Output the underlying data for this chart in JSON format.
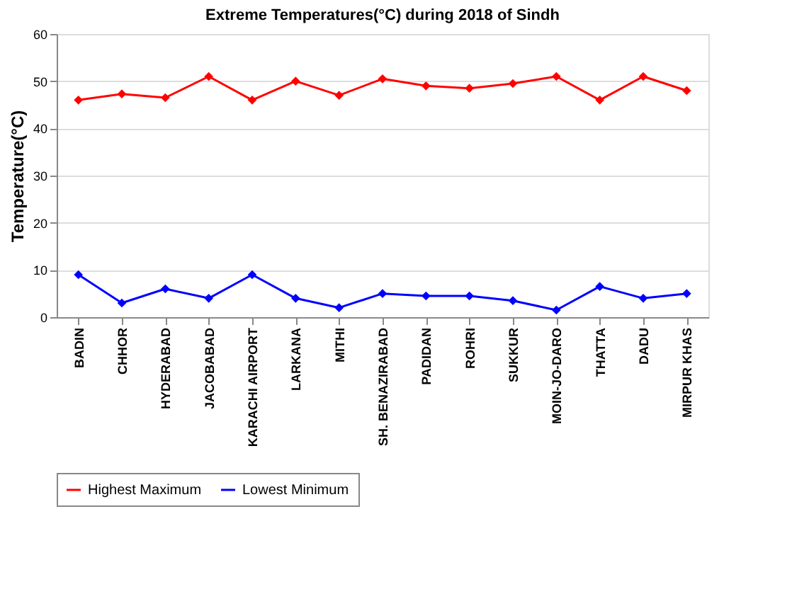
{
  "chart_data": {
    "type": "line",
    "title": "Extreme Temperatures(°C) during 2018 of Sindh",
    "ylabel": "Temperature(°C)",
    "categories": [
      "BADIN",
      "CHHOR",
      "HYDERABAD",
      "JACOBABAD",
      "KARACHI AIRPORT",
      "LARKANA",
      "MITHI",
      "SH. BENAZIRABAD",
      "PADIDAN",
      "ROHRI",
      "SUKKUR",
      "MOIN-JO-DARO",
      "THATTA",
      "DADU",
      "MIRPUR KHAS"
    ],
    "series": [
      {
        "name": "Highest Maximum",
        "color": "#ff0000",
        "values": [
          46,
          47.3,
          46.5,
          51,
          46,
          50,
          47,
          50.5,
          49,
          48.5,
          49.5,
          51,
          46,
          51,
          48
        ]
      },
      {
        "name": "Lowest Minimum",
        "color": "#0000ff",
        "values": [
          9,
          3,
          6,
          4,
          9,
          4,
          2,
          5,
          4.5,
          4.5,
          3.5,
          1.5,
          6.5,
          4,
          5
        ]
      }
    ],
    "ylim": [
      0,
      60
    ],
    "yticks": [
      0,
      10,
      20,
      30,
      40,
      50,
      60
    ],
    "grid": "y",
    "legend": "bottom",
    "marker": "diamond",
    "line_style": "solid"
  }
}
